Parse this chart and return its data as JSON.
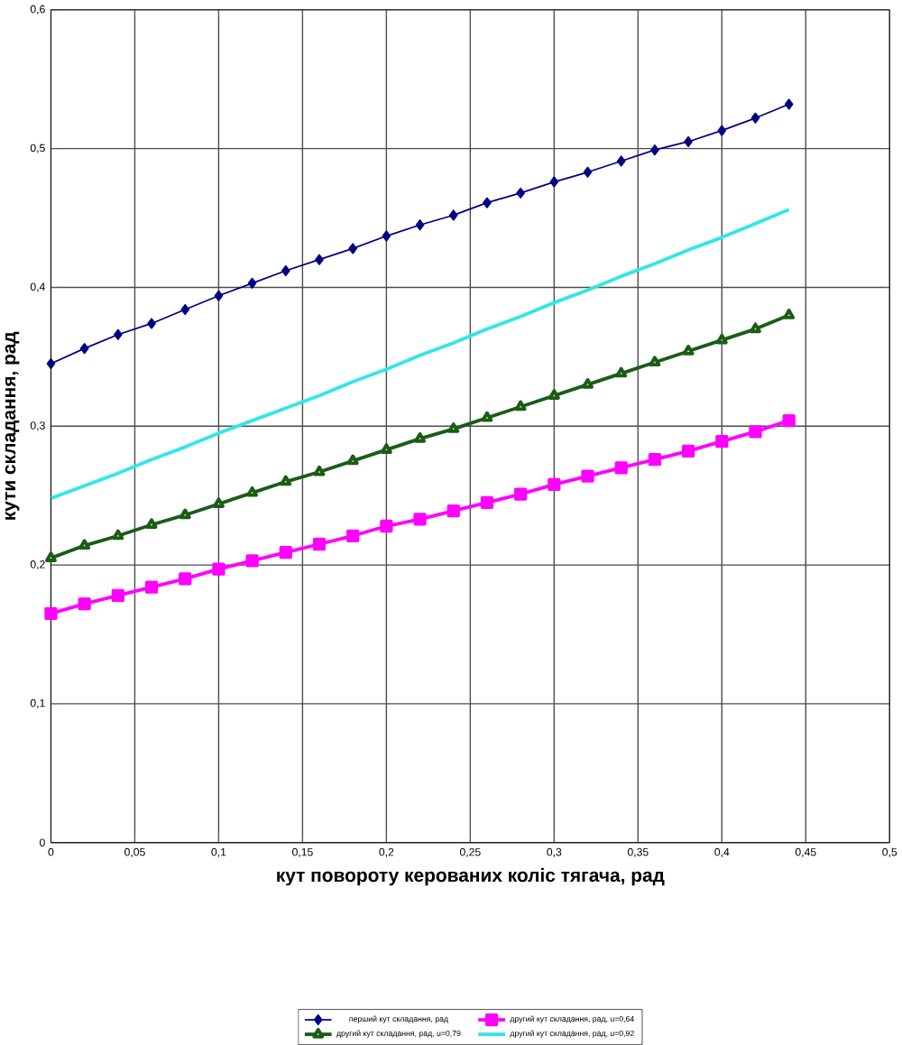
{
  "chart_data": {
    "type": "line",
    "xlabel": "кут повороту керованих коліс тягача, рад",
    "ylabel": "кути складання, рад",
    "x": [
      0,
      0.02,
      0.04,
      0.06,
      0.08,
      0.1,
      0.12,
      0.14,
      0.16,
      0.18,
      0.2,
      0.22,
      0.24,
      0.26,
      0.28,
      0.3,
      0.32,
      0.34,
      0.36,
      0.38,
      0.4,
      0.42,
      0.44
    ],
    "series": [
      {
        "name": "перший кут складання, рад",
        "color": "#000080",
        "marker": "diamond",
        "values": [
          0.345,
          0.356,
          0.366,
          0.374,
          0.384,
          0.394,
          0.403,
          0.412,
          0.42,
          0.428,
          0.437,
          0.445,
          0.452,
          0.461,
          0.468,
          0.476,
          0.483,
          0.491,
          0.499,
          0.505,
          0.513,
          0.522,
          0.532
        ]
      },
      {
        "name": "другий кут складання, рад, u=0,64",
        "color": "#ff00ff",
        "marker": "square",
        "values": [
          0.165,
          0.172,
          0.178,
          0.184,
          0.19,
          0.197,
          0.203,
          0.209,
          0.215,
          0.221,
          0.228,
          0.233,
          0.239,
          0.245,
          0.251,
          0.258,
          0.264,
          0.27,
          0.276,
          0.282,
          0.289,
          0.296,
          0.304
        ]
      },
      {
        "name": "другий кут складання, рад, u=0,79",
        "color": "#1a5c1a",
        "marker": "triangle",
        "values": [
          0.205,
          0.214,
          0.221,
          0.229,
          0.236,
          0.244,
          0.252,
          0.26,
          0.267,
          0.275,
          0.283,
          0.291,
          0.298,
          0.306,
          0.314,
          0.322,
          0.33,
          0.338,
          0.346,
          0.354,
          0.362,
          0.37,
          0.38
        ]
      },
      {
        "name": "другий кут складання, рад, u=0,92",
        "color": "#33e6e6",
        "marker": "none",
        "values": [
          0.248,
          0.257,
          0.266,
          0.276,
          0.285,
          0.295,
          0.304,
          0.313,
          0.322,
          0.332,
          0.341,
          0.351,
          0.36,
          0.37,
          0.379,
          0.389,
          0.398,
          0.408,
          0.417,
          0.427,
          0.436,
          0.446,
          0.456
        ]
      }
    ],
    "xlim": [
      0,
      0.5
    ],
    "xticks": [
      0,
      {
        "value": 0.05,
        "label": "0,05"
      },
      {
        "value": 0.1,
        "label": "0,1"
      },
      {
        "value": 0.15,
        "label": "0,15"
      },
      {
        "value": 0.2,
        "label": "0,2"
      },
      {
        "value": 0.25,
        "label": "0,25"
      },
      {
        "value": 0.3,
        "label": "0,3"
      },
      {
        "value": 0.35,
        "label": "0,35"
      },
      {
        "value": 0.4,
        "label": "0,4"
      },
      {
        "value": 0.45,
        "label": "0,45"
      },
      {
        "value": 0.5,
        "label": "0,5"
      }
    ],
    "ylim": [
      0,
      0.6
    ],
    "yticks": [
      0,
      {
        "value": 0.1,
        "label": "0,1"
      },
      {
        "value": 0.2,
        "label": "0,2"
      },
      {
        "value": 0.3,
        "label": "0,3"
      },
      {
        "value": 0.4,
        "label": "0,4"
      },
      {
        "value": 0.5,
        "label": "0,5"
      },
      {
        "value": 0.6,
        "label": "0,6"
      }
    ],
    "grid": true,
    "legend": "bottom",
    "line_style": "solid"
  }
}
